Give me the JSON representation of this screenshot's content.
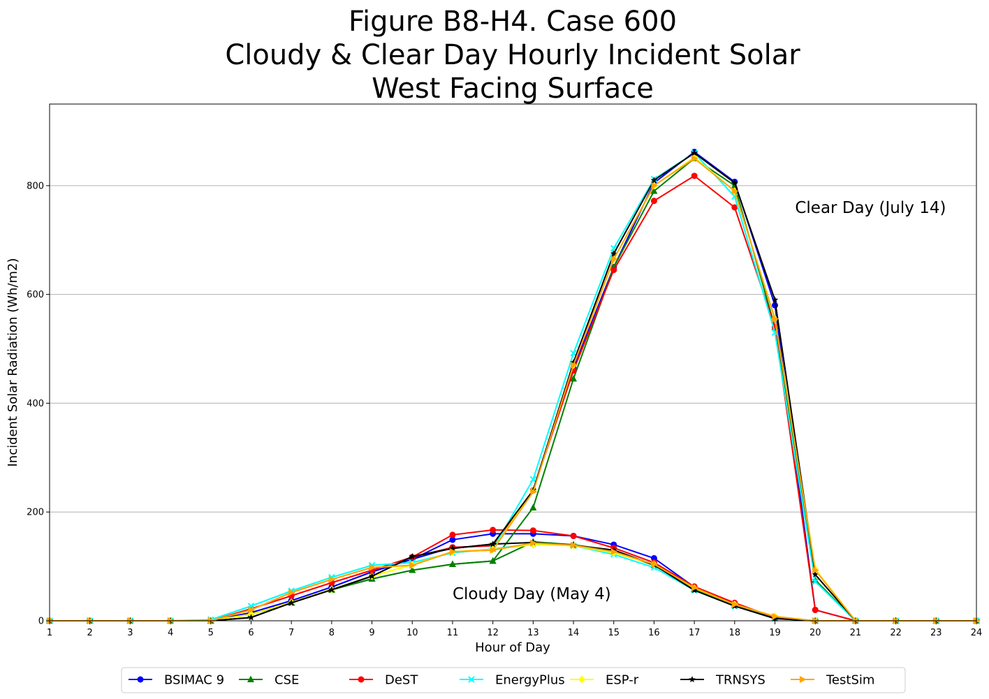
{
  "chart_data": {
    "type": "line",
    "title": [
      "Figure B8-H4. Case 600",
      "Cloudy & Clear Day Hourly Incident Solar",
      "West Facing Surface"
    ],
    "xlabel": "Hour of Day",
    "ylabel": "Incident Solar Radiation (Wh/m2)",
    "x": [
      1,
      2,
      3,
      4,
      5,
      6,
      7,
      8,
      9,
      10,
      11,
      12,
      13,
      14,
      15,
      16,
      17,
      18,
      19,
      20,
      21,
      22,
      23,
      24
    ],
    "xlim": [
      1,
      24
    ],
    "ylim": [
      0,
      950
    ],
    "yticks": [
      0,
      200,
      400,
      600,
      800
    ],
    "grid": "horizontal",
    "legend_position": "bottom-center",
    "annotations": [
      {
        "text": "Clear Day (July 14)",
        "x": 19.5,
        "y": 760
      },
      {
        "text": "Cloudy Day (May 4)",
        "x": 11,
        "y": 50
      }
    ],
    "series": [
      {
        "name": "BSIMAC 9",
        "color": "#0000ff",
        "marker": "circle",
        "cloudy": [
          0,
          0,
          0,
          0,
          0,
          15,
          37,
          62,
          90,
          113,
          149,
          160,
          160,
          156,
          140,
          115,
          62,
          32,
          5,
          0,
          0,
          0,
          0,
          0
        ],
        "clear": [
          0,
          0,
          0,
          0,
          0,
          15,
          37,
          62,
          90,
          113,
          135,
          138,
          240,
          465,
          650,
          805,
          862,
          807,
          580,
          20,
          0,
          0,
          0,
          0
        ]
      },
      {
        "name": "CSE",
        "color": "#008000",
        "marker": "triangle",
        "cloudy": [
          0,
          0,
          0,
          0,
          0,
          12,
          33,
          57,
          77,
          93,
          104,
          110,
          145,
          140,
          128,
          102,
          58,
          29,
          5,
          0,
          0,
          0,
          0,
          0
        ],
        "clear": [
          0,
          0,
          0,
          0,
          0,
          12,
          33,
          57,
          77,
          93,
          104,
          110,
          208,
          445,
          650,
          790,
          850,
          800,
          540,
          75,
          0,
          0,
          0,
          0
        ]
      },
      {
        "name": "DeST",
        "color": "#ff0000",
        "marker": "circle",
        "cloudy": [
          0,
          0,
          0,
          0,
          0,
          22,
          46,
          70,
          93,
          117,
          158,
          167,
          166,
          156,
          134,
          107,
          63,
          33,
          6,
          0,
          0,
          0,
          0,
          0
        ],
        "clear": [
          0,
          0,
          0,
          0,
          0,
          22,
          46,
          70,
          93,
          117,
          135,
          138,
          240,
          460,
          645,
          772,
          818,
          760,
          540,
          20,
          0,
          0,
          0,
          0
        ]
      },
      {
        "name": "EnergyPlus",
        "color": "#00ffff",
        "marker": "x",
        "cloudy": [
          0,
          0,
          0,
          0,
          2,
          27,
          55,
          80,
          102,
          107,
          125,
          132,
          142,
          138,
          122,
          98,
          56,
          27,
          4,
          0,
          0,
          0,
          0,
          0
        ],
        "clear": [
          0,
          0,
          0,
          0,
          2,
          27,
          55,
          80,
          102,
          107,
          125,
          132,
          260,
          492,
          685,
          812,
          860,
          780,
          530,
          72,
          0,
          0,
          0,
          0
        ]
      },
      {
        "name": "ESP-r",
        "color": "#ffff00",
        "marker": "diamond",
        "cloudy": [
          0,
          0,
          0,
          0,
          0,
          12,
          34,
          58,
          82,
          103,
          127,
          131,
          140,
          138,
          125,
          104,
          60,
          30,
          8,
          0,
          0,
          0,
          0,
          0
        ],
        "clear": [
          0,
          0,
          0,
          0,
          0,
          12,
          34,
          58,
          82,
          103,
          127,
          131,
          240,
          470,
          665,
          800,
          852,
          790,
          555,
          95,
          0,
          0,
          0,
          0
        ]
      },
      {
        "name": "TRNSYS",
        "color": "#000000",
        "marker": "star",
        "cloudy": [
          0,
          0,
          0,
          0,
          0,
          6,
          33,
          57,
          82,
          118,
          133,
          141,
          144,
          139,
          130,
          103,
          56,
          27,
          4,
          0,
          0,
          0,
          0,
          0
        ],
        "clear": [
          0,
          0,
          0,
          0,
          0,
          6,
          33,
          57,
          82,
          118,
          133,
          141,
          240,
          475,
          675,
          810,
          860,
          805,
          590,
          85,
          0,
          0,
          0,
          0
        ]
      },
      {
        "name": "TestSim",
        "color": "#ffa500",
        "marker": "triangle-right",
        "cloudy": [
          0,
          0,
          0,
          0,
          0,
          20,
          52,
          76,
          98,
          102,
          127,
          130,
          143,
          139,
          127,
          104,
          61,
          30,
          8,
          0,
          0,
          0,
          0,
          0
        ],
        "clear": [
          0,
          0,
          0,
          0,
          0,
          20,
          52,
          76,
          98,
          102,
          127,
          130,
          237,
          470,
          665,
          800,
          850,
          790,
          555,
          93,
          0,
          0,
          0,
          0
        ]
      }
    ]
  }
}
